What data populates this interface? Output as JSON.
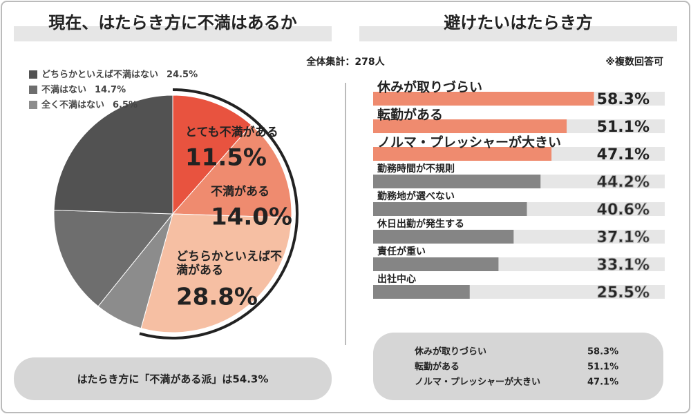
{
  "header_note": "全体集計：278人",
  "chart_data": [
    {
      "type": "pie",
      "title": "現在、はたらき方に不満はあるか",
      "categories": [
        "とても不満がある",
        "不満がある",
        "どちらかといえば不満がある",
        "全く不満はない",
        "不満はない",
        "どちらかといえば不満はない"
      ],
      "values": [
        11.5,
        14.0,
        28.8,
        6.5,
        14.7,
        24.5
      ],
      "value_labels": [
        "11.5%",
        "14.0%",
        "28.8%",
        "6.5%",
        "14.7%",
        "24.5%"
      ],
      "colors": [
        "#e8533f",
        "#ef8b6f",
        "#f6bfa3",
        "#8c8c8c",
        "#6e6e6e",
        "#525252"
      ],
      "footer": "はたらき方に「不満がある派」は54.3%"
    },
    {
      "type": "hbar",
      "title": "避けたいはたらき方",
      "note": "※複数回答可",
      "categories": [
        "休みが取りづらい",
        "転勤がある",
        "ノルマ・プレッシャーが大きい",
        "勤務時間が不規則",
        "勤務地が選べない",
        "休日出勤が発生する",
        "責任が重い",
        "出社中心"
      ],
      "values": [
        58.3,
        51.1,
        47.1,
        44.2,
        40.6,
        37.1,
        33.1,
        25.5
      ],
      "value_labels": [
        "58.3%",
        "51.1%",
        "47.1%",
        "44.2%",
        "40.6%",
        "37.1%",
        "33.1%",
        "25.5%"
      ],
      "colors": [
        "#ef8b6f",
        "#ef8b6f",
        "#ef8b6f",
        "#858585",
        "#858585",
        "#858585",
        "#858585",
        "#858585"
      ],
      "xlim": [
        0,
        77
      ]
    }
  ]
}
